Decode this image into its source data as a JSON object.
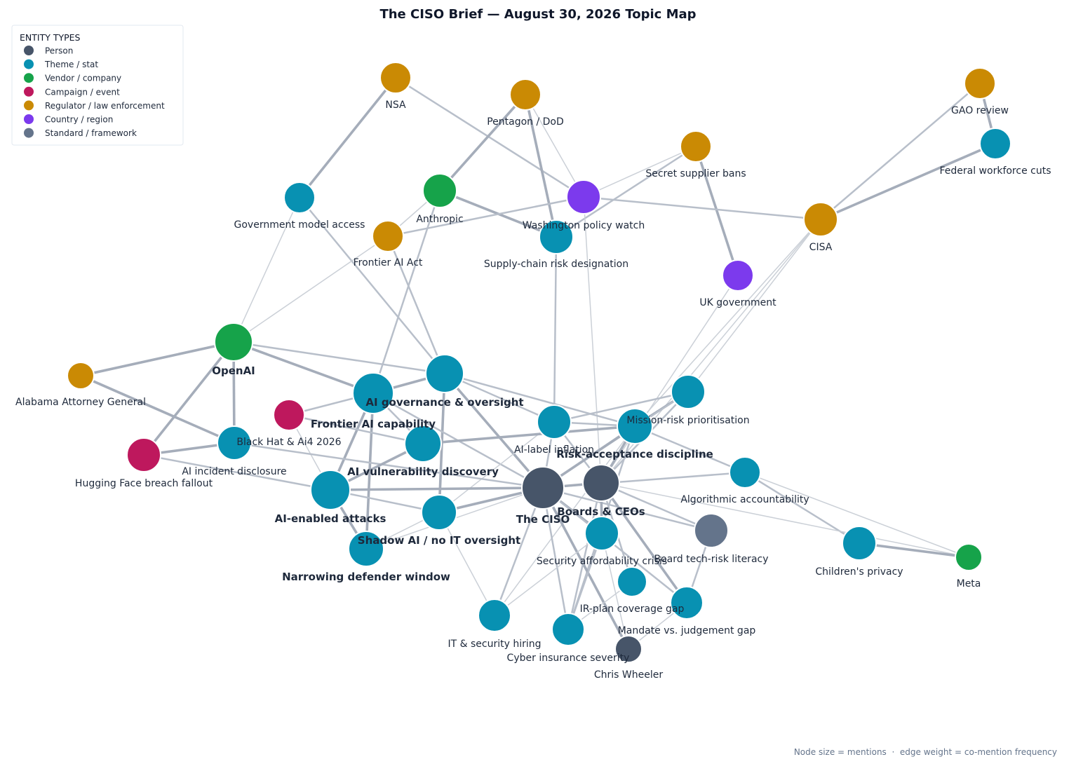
{
  "header": {
    "title": "The CISO Brief — August 30, 2026 Topic Map"
  },
  "legend": {
    "title": "ENTITY TYPES",
    "items": [
      {
        "label": "Person",
        "color": "#475569"
      },
      {
        "label": "Theme / stat",
        "color": "#0891b2"
      },
      {
        "label": "Vendor / company",
        "color": "#16a34a"
      },
      {
        "label": "Campaign / event",
        "color": "#be185d"
      },
      {
        "label": "Regulator / law enforcement",
        "color": "#ca8a04"
      },
      {
        "label": "Country / region",
        "color": "#7c3aed"
      },
      {
        "label": "Standard / framework",
        "color": "#64748b"
      }
    ]
  },
  "nodes": [
    {
      "label": "NSA"
    },
    {
      "label": "Pentagon / DoD"
    },
    {
      "label": "GAO review"
    },
    {
      "label": "Federal workforce cuts"
    },
    {
      "label": "Secret supplier bans"
    },
    {
      "label": "Government model access"
    },
    {
      "label": "Anthropic"
    },
    {
      "label": "Washington policy watch"
    },
    {
      "label": "CISA"
    },
    {
      "label": "Frontier AI Act"
    },
    {
      "label": "Supply-chain risk designation"
    },
    {
      "label": "UK government"
    },
    {
      "label": "OpenAI"
    },
    {
      "label": "Alabama Attorney General"
    },
    {
      "label": "AI governance & oversight"
    },
    {
      "label": "Frontier AI capability"
    },
    {
      "label": "Mission-risk prioritisation"
    },
    {
      "label": "Black Hat & Ai4 2026"
    },
    {
      "label": "AI-label inflation"
    },
    {
      "label": "Risk-acceptance discipline"
    },
    {
      "label": "Hugging Face breach fallout"
    },
    {
      "label": "AI incident disclosure"
    },
    {
      "label": "AI vulnerability discovery"
    },
    {
      "label": "Algorithmic accountability"
    },
    {
      "label": "The CISO"
    },
    {
      "label": "Boards & CEOs"
    },
    {
      "label": "AI-enabled attacks"
    },
    {
      "label": "Shadow AI / no IT oversight"
    },
    {
      "label": "Board tech-risk literacy"
    },
    {
      "label": "Security affordability crisis"
    },
    {
      "label": "Narrowing defender window"
    },
    {
      "label": "Children's privacy"
    },
    {
      "label": "Meta"
    },
    {
      "label": "IR-plan coverage gap"
    },
    {
      "label": "Mandate vs. judgement gap"
    },
    {
      "label": "IT & security hiring"
    },
    {
      "label": "Cyber insurance severity"
    },
    {
      "label": "Chris Wheeler"
    }
  ],
  "footnote": "Node size = mentions  ·  edge weight = co-mention frequency"
}
